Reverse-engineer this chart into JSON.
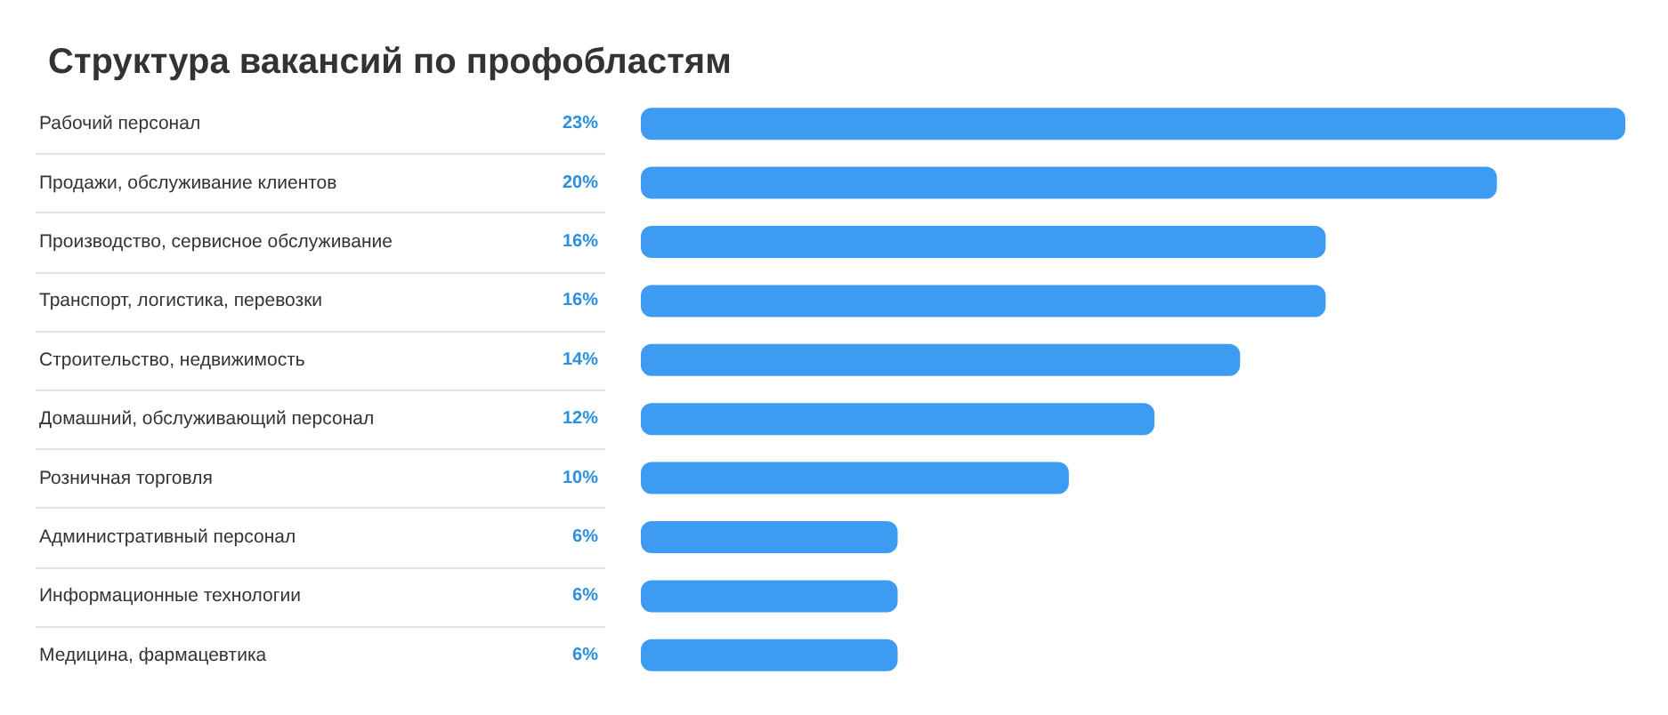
{
  "chart_data": {
    "type": "bar",
    "orientation": "horizontal",
    "title": "Структура вакансий по профобластям",
    "categories": [
      "Рабочий персонал",
      "Продажи, обслуживание клиентов",
      "Производство, сервисное обслуживание",
      "Транспорт, логистика, перевозки",
      "Строительство, недвижимость",
      "Домашний, обслуживающий персонал",
      "Розничная торговля",
      "Административный персонал",
      "Информационные технологии",
      "Медицина, фармацевтика"
    ],
    "values": [
      23,
      20,
      16,
      16,
      14,
      12,
      10,
      6,
      6,
      6
    ],
    "value_labels": [
      "23%",
      "20%",
      "16%",
      "16%",
      "14%",
      "12%",
      "10%",
      "6%",
      "6%",
      "6%"
    ],
    "color": "#3d9cf2"
  }
}
